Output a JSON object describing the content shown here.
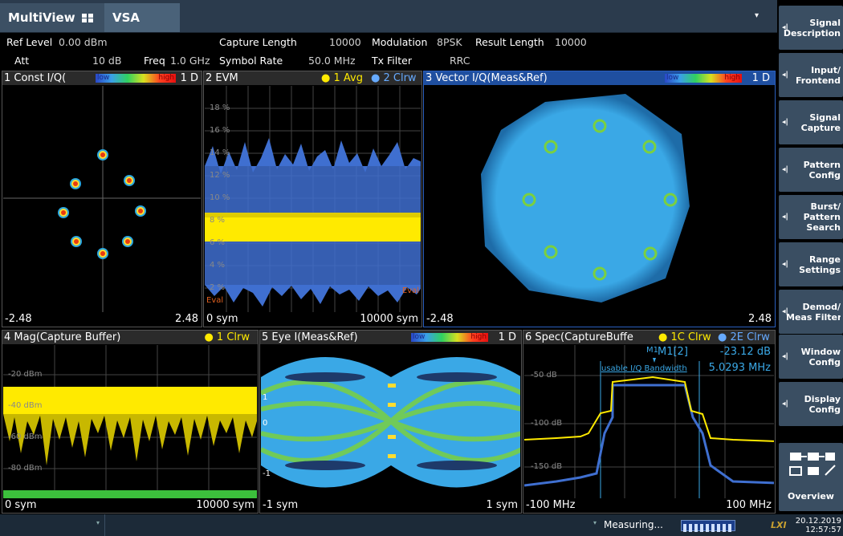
{
  "tabs": {
    "multiview": "MultiView",
    "vsa": "VSA",
    "dropdown": "▾"
  },
  "info": {
    "ref_level_lbl": "Ref Level",
    "ref_level_val": "0.00 dBm",
    "att_lbl": "Att",
    "att_val": "10 dB",
    "freq_lbl": "Freq",
    "freq_val": "1.0 GHz",
    "capture_length_lbl": "Capture Length",
    "capture_length_val": "10000",
    "symbol_rate_lbl": "Symbol Rate",
    "symbol_rate_val": "50.0 MHz",
    "modulation_lbl": "Modulation",
    "modulation_val": "8PSK",
    "tx_filter_lbl": "Tx Filter",
    "tx_filter_val": "RRC",
    "result_length_lbl": "Result Length",
    "result_length_val": "10000"
  },
  "softkeys": [
    {
      "l1": "Signal",
      "l2": "Description"
    },
    {
      "l1": "Input/",
      "l2": "Frontend"
    },
    {
      "l1": "Signal",
      "l2": "Capture"
    },
    {
      "l1": "Pattern",
      "l2": "Config"
    },
    {
      "l1": "Burst/",
      "l2": "Pattern",
      "l3": "Search"
    },
    {
      "l1": "Range",
      "l2": "Settings"
    },
    {
      "l1": "Demod/",
      "l2": "Meas Filter"
    },
    {
      "l1": "Window",
      "l2": "Config"
    },
    {
      "l1": "Display",
      "l2": "Config"
    }
  ],
  "overview_label": "Overview",
  "windows": {
    "w1": {
      "title": "1 Const I/Q(",
      "low": "low",
      "high": "high",
      "trace": "1 D",
      "x_min": "-2.48",
      "x_max": "2.48"
    },
    "w2": {
      "title": "2 EVM",
      "trace1": "● 1 Avg",
      "trace2": "● 2 Clrw",
      "x_min": "0 sym",
      "x_max": "10000 sym",
      "grid": [
        "18 %",
        "16 %",
        "14 %",
        "12 %",
        "10 %",
        "8 %",
        "6 %",
        "4 %",
        "2 %"
      ],
      "eval_l": "Eval",
      "eval_r": "Eval"
    },
    "w3": {
      "title": "3 Vector I/Q(Meas&Ref)",
      "low": "low",
      "high": "high",
      "trace": "1 D",
      "x_min": "-2.48",
      "x_max": "2.48"
    },
    "w4": {
      "title": "4 Mag(Capture Buffer)",
      "trace1": "● 1 Clrw",
      "x_min": "0 sym",
      "x_max": "10000 sym",
      "grid": [
        "-20 dBm",
        "-40 dBm",
        "-60 dBm",
        "-80 dBm"
      ]
    },
    "w5": {
      "title": "5 Eye I(Meas&Ref)",
      "low": "low",
      "high": "high",
      "trace": "1 D",
      "x_min": "-1 sym",
      "x_max": "1 sym",
      "grid": [
        "1",
        "0",
        "-1"
      ]
    },
    "w6": {
      "title": "6 Spec(CaptureBuffe",
      "trace1": "● 1C Clrw",
      "trace2": "● 2E Clrw",
      "x_min": "-100 MHz",
      "x_max": "100 MHz",
      "marker": "M1[2]",
      "marker_val": "-23.12 dB",
      "bw_lbl": "usable I/Q Bandwidth",
      "bw_val": "5.0293 MHz",
      "m_tag": "M1",
      "grid": [
        "-50 dB",
        "-100 dB",
        "-150 dB"
      ]
    }
  },
  "status": {
    "measuring": "Measuring...",
    "date": "20.12.2019",
    "time": "12:57:57"
  },
  "colors": {
    "trace_yellow": "#ffea00",
    "trace_blue": "#3f6fd0",
    "scatter": "#3aa8e6",
    "title_bar": "#2b3b4d",
    "softkey": "#3a4e62"
  }
}
